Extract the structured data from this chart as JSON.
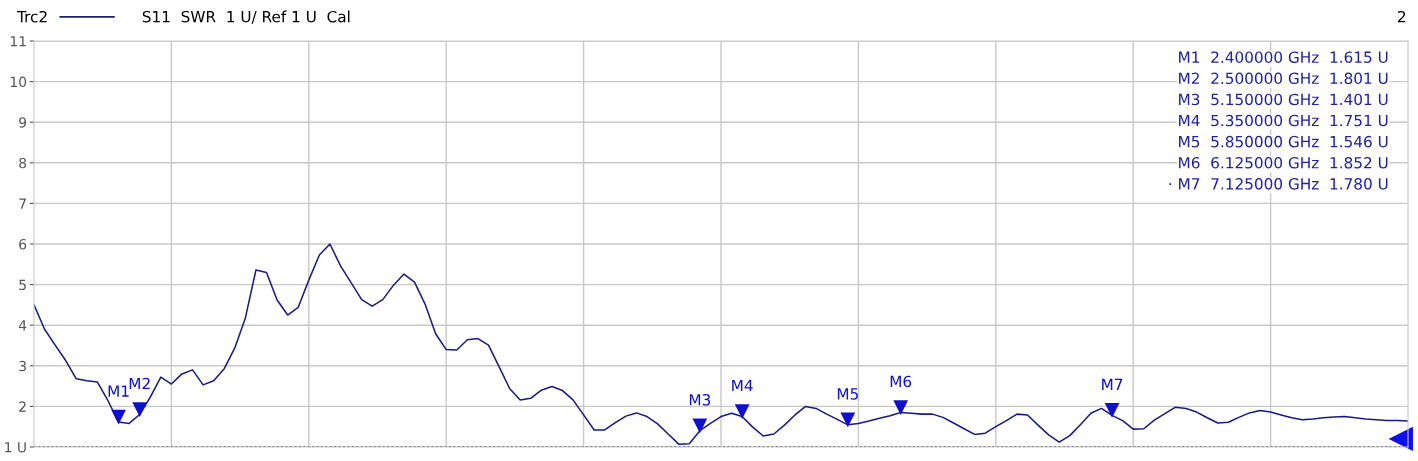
{
  "chart_data": {
    "type": "line",
    "title": "S11  SWR  1 U/ Ref 1 U  Cal",
    "categories": [
      null,
      null,
      null,
      null,
      null,
      null,
      null,
      null,
      null,
      null,
      null,
      null,
      null,
      null,
      null,
      null,
      null,
      null,
      null,
      null,
      null,
      null,
      null,
      null,
      null,
      null,
      null,
      null,
      null,
      null,
      null,
      null,
      null,
      null,
      null,
      null,
      null,
      null,
      null,
      null,
      null,
      null,
      null,
      null,
      null,
      null,
      null,
      null,
      null,
      null,
      null,
      null,
      null,
      null,
      null,
      null,
      null,
      null,
      null,
      null,
      null,
      null,
      null,
      null,
      null,
      null,
      null,
      null,
      null,
      null,
      null,
      null,
      null,
      null,
      null,
      null,
      null,
      null,
      null,
      null,
      null,
      null,
      null,
      null,
      null,
      null,
      null,
      null,
      null,
      null,
      null,
      null,
      null,
      null,
      null,
      null,
      null,
      null,
      null,
      null,
      null,
      null,
      null,
      null,
      null,
      null,
      null,
      null,
      null,
      null,
      null,
      null,
      null,
      null,
      null,
      null,
      null,
      null,
      null,
      null,
      null,
      null,
      null,
      null,
      null,
      null,
      null,
      null,
      null,
      null,
      null
    ],
    "series": [
      {
        "name": "Trc2",
        "color": "#1a1a80",
        "values": [
          4.5,
          3.9,
          3.51,
          3.13,
          2.68,
          2.63,
          2.6,
          2.14,
          1.615,
          1.58,
          1.801,
          2.23,
          2.72,
          2.55,
          2.8,
          2.9,
          2.53,
          2.63,
          2.93,
          3.44,
          4.18,
          5.36,
          5.3,
          4.62,
          4.25,
          4.44,
          5.11,
          5.73,
          6.0,
          5.46,
          5.05,
          4.63,
          4.47,
          4.63,
          4.98,
          5.26,
          5.06,
          4.52,
          3.79,
          3.4,
          3.39,
          3.64,
          3.67,
          3.51,
          2.98,
          2.44,
          2.16,
          2.2,
          2.4,
          2.49,
          2.39,
          2.16,
          1.79,
          1.42,
          1.42,
          1.6,
          1.76,
          1.84,
          1.75,
          1.57,
          1.32,
          1.07,
          1.08,
          1.401,
          1.58,
          1.75,
          1.83,
          1.751,
          1.49,
          1.27,
          1.32,
          1.54,
          1.79,
          2.0,
          1.95,
          1.81,
          1.68,
          1.546,
          1.58,
          1.64,
          1.71,
          1.77,
          1.852,
          1.83,
          1.81,
          1.81,
          1.73,
          1.59,
          1.45,
          1.31,
          1.34,
          1.5,
          1.65,
          1.81,
          1.79,
          1.54,
          1.3,
          1.12,
          1.28,
          1.55,
          1.83,
          1.95,
          1.78,
          1.65,
          1.44,
          1.45,
          1.66,
          1.82,
          1.98,
          1.95,
          1.86,
          1.72,
          1.59,
          1.61,
          1.73,
          1.84,
          1.9,
          1.86,
          1.79,
          1.72,
          1.67,
          1.69,
          1.72,
          1.74,
          1.75,
          1.72,
          1.69,
          1.67,
          1.65,
          1.65,
          1.64
        ]
      }
    ],
    "ylim": [
      1,
      11
    ],
    "yticks": [
      {
        "value": 1,
        "label": "1 U"
      },
      2,
      3,
      4,
      5,
      6,
      7,
      8,
      9,
      10,
      11
    ],
    "tick_labels": "y",
    "grid": true,
    "legend": "top left",
    "marker": "none",
    "line_style": "solid",
    "ref_lines": [
      {
        "axis": "y",
        "value": 1,
        "color": "#000000",
        "line_style": "dotted"
      }
    ],
    "annotations": [
      {
        "text": "M1",
        "y": 1.615
      },
      {
        "text": "M2",
        "y": 1.801
      },
      {
        "text": "M3",
        "y": 1.401
      },
      {
        "text": "M4",
        "y": 1.751
      },
      {
        "text": "M5",
        "y": 1.546
      },
      {
        "text": "M6",
        "y": 1.852
      },
      {
        "text": "M7",
        "y": 1.78
      },
      "M1  2.400000 GHz  1.615 U",
      "M2  2.500000 GHz  1.801 U",
      "M3  5.150000 GHz  1.401 U",
      "M4  5.350000 GHz  1.751 U",
      "M5  5.850000 GHz  1.546 U",
      "M6  6.125000 GHz  1.852 U",
      "· M7  7.125000 GHz  1.780 U",
      "2"
    ]
  }
}
